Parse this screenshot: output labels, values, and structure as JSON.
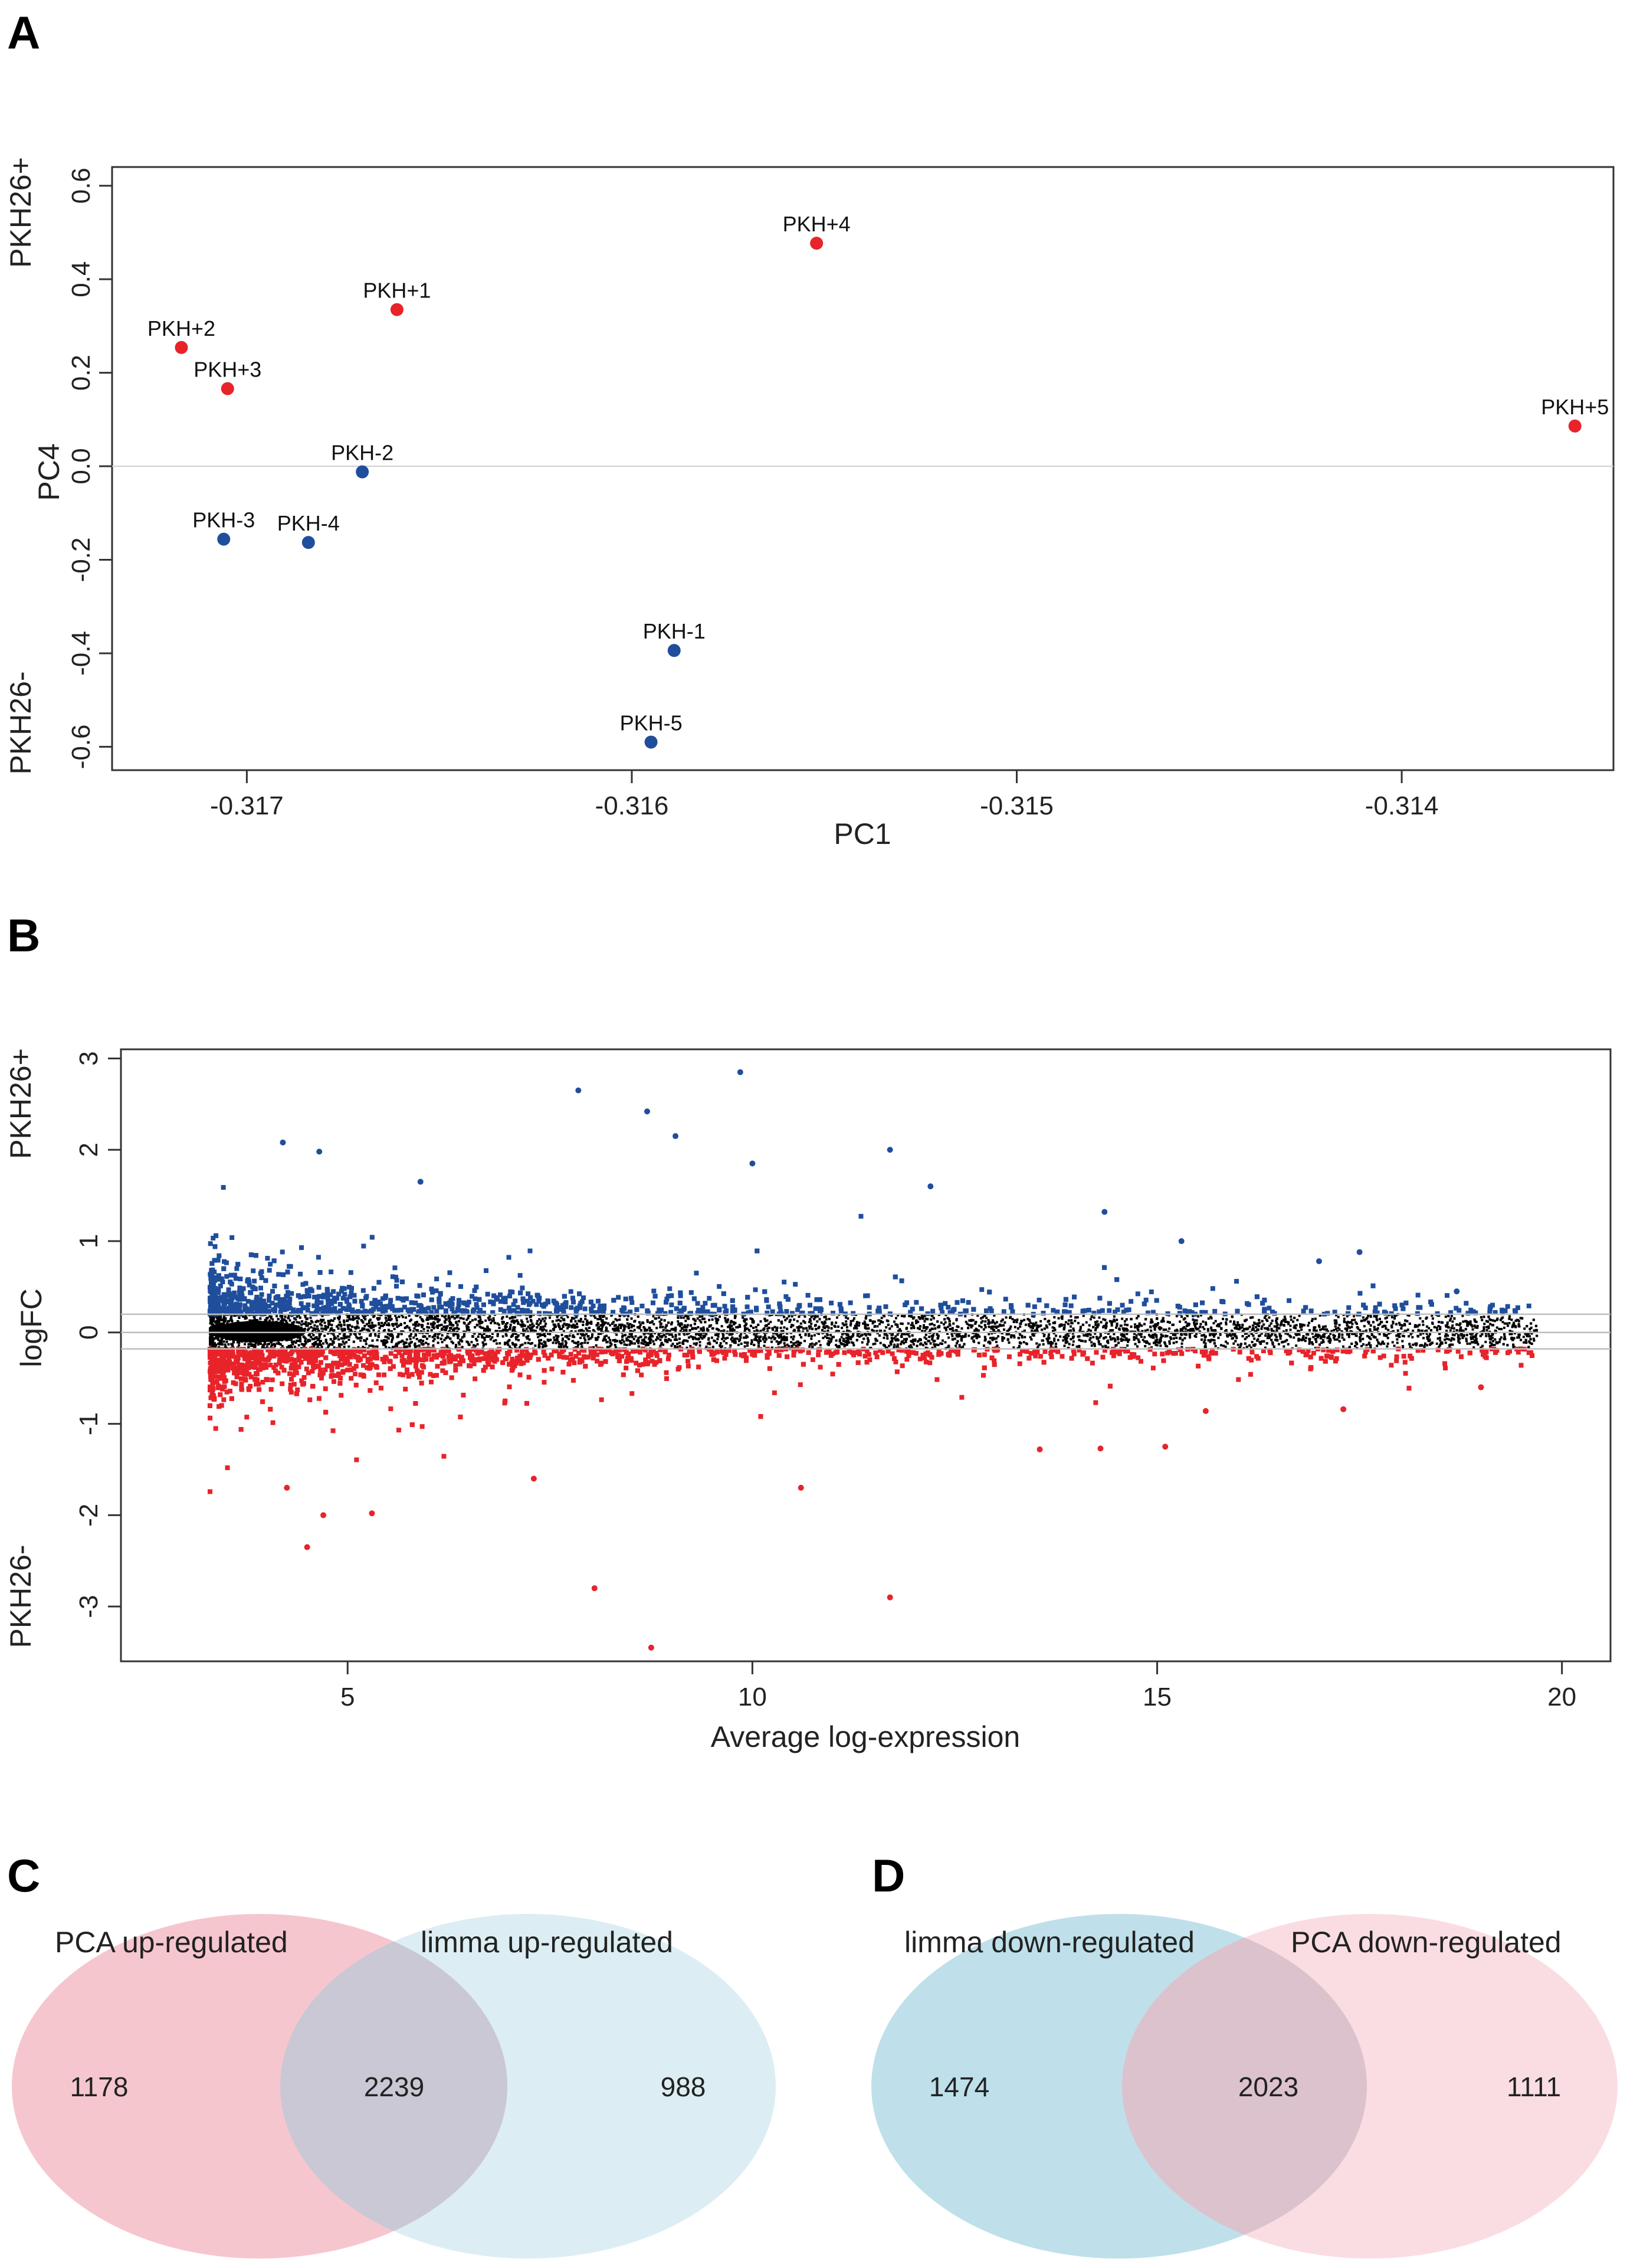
{
  "panels": {
    "A": "A",
    "B": "B",
    "C": "C",
    "D": "D"
  },
  "colors": {
    "red": "#e8232a",
    "blue": "#1f4e9c",
    "black": "#000000",
    "venn_pink": "#f6c6cf",
    "venn_blue": "#bfe0ea",
    "venn_overlap": "#c9c8d4"
  },
  "chart_data": [
    {
      "id": "pca",
      "type": "scatter",
      "xlabel": "PC1",
      "ylabel": "PC4",
      "ylabel_top": "PKH26+",
      "ylabel_bottom": "PKH26-",
      "xlim": [
        -0.31735,
        -0.31345
      ],
      "ylim": [
        -0.65,
        0.64
      ],
      "xticks": [
        -0.317,
        -0.316,
        -0.315,
        -0.314
      ],
      "xtick_labels": [
        "-0.317",
        "-0.316",
        "-0.315",
        "-0.314"
      ],
      "yticks": [
        -0.6,
        -0.4,
        -0.2,
        0.0,
        0.2,
        0.4,
        0.6
      ],
      "ytick_labels": [
        "-0.6",
        "-0.4",
        "-0.2",
        "0.0",
        "0.2",
        "0.4",
        "0.6"
      ],
      "hline": 0,
      "points": [
        {
          "label": "PKH+4",
          "x": -0.31552,
          "y": 0.477,
          "group": "positive"
        },
        {
          "label": "PKH+1",
          "x": -0.31661,
          "y": 0.335,
          "group": "positive"
        },
        {
          "label": "PKH+2",
          "x": -0.31717,
          "y": 0.254,
          "group": "positive"
        },
        {
          "label": "PKH+3",
          "x": -0.31705,
          "y": 0.166,
          "group": "positive"
        },
        {
          "label": "PKH+5",
          "x": -0.31355,
          "y": 0.086,
          "group": "positive"
        },
        {
          "label": "PKH-2",
          "x": -0.3167,
          "y": -0.012,
          "group": "negative"
        },
        {
          "label": "PKH-3",
          "x": -0.31706,
          "y": -0.156,
          "group": "negative"
        },
        {
          "label": "PKH-4",
          "x": -0.31684,
          "y": -0.163,
          "group": "negative"
        },
        {
          "label": "PKH-1",
          "x": -0.31589,
          "y": -0.394,
          "group": "negative"
        },
        {
          "label": "PKH-5",
          "x": -0.31595,
          "y": -0.59,
          "group": "negative"
        }
      ]
    },
    {
      "id": "ma",
      "type": "scatter",
      "xlabel": "Average log-expression",
      "ylabel": "logFC",
      "ylabel_top": "PKH26+",
      "ylabel_bottom": "PKH26-",
      "xlim": [
        2.2,
        20.6
      ],
      "ylim": [
        -3.6,
        3.1
      ],
      "xticks": [
        5,
        10,
        15,
        20
      ],
      "xtick_labels": [
        "5",
        "10",
        "15",
        "20"
      ],
      "yticks": [
        -3,
        -2,
        -1,
        0,
        1,
        2,
        3
      ],
      "ytick_labels": [
        "-3",
        "-2",
        "-1",
        "0",
        "1",
        "2",
        "3"
      ],
      "hlines": [
        -0.18,
        0,
        0.2
      ],
      "sampled_outliers": [
        {
          "x": 9.85,
          "y": 2.85
        },
        {
          "x": 7.85,
          "y": 2.65
        },
        {
          "x": 8.7,
          "y": 2.42
        },
        {
          "x": 9.05,
          "y": 2.15
        },
        {
          "x": 4.2,
          "y": 2.08
        },
        {
          "x": 11.7,
          "y": 2.0
        },
        {
          "x": 4.65,
          "y": 1.98
        },
        {
          "x": 10.0,
          "y": 1.85
        },
        {
          "x": 5.9,
          "y": 1.65
        },
        {
          "x": 12.2,
          "y": 1.6
        },
        {
          "x": 14.35,
          "y": 1.32
        },
        {
          "x": 15.3,
          "y": 1.0
        },
        {
          "x": 17.0,
          "y": 0.78
        },
        {
          "x": 17.5,
          "y": 0.88
        },
        {
          "x": 18.7,
          "y": 0.45
        },
        {
          "x": 4.5,
          "y": -2.35
        },
        {
          "x": 4.7,
          "y": -2.0
        },
        {
          "x": 5.3,
          "y": -1.98
        },
        {
          "x": 8.05,
          "y": -2.8
        },
        {
          "x": 8.75,
          "y": -3.45
        },
        {
          "x": 11.7,
          "y": -2.9
        },
        {
          "x": 10.6,
          "y": -1.7
        },
        {
          "x": 4.25,
          "y": -1.7
        },
        {
          "x": 7.3,
          "y": -1.6
        },
        {
          "x": 14.3,
          "y": -1.27
        },
        {
          "x": 15.1,
          "y": -1.25
        },
        {
          "x": 13.55,
          "y": -1.28
        },
        {
          "x": 15.6,
          "y": -0.86
        },
        {
          "x": 17.3,
          "y": -0.84
        },
        {
          "x": 19.0,
          "y": -0.6
        }
      ]
    }
  ],
  "venn_c": {
    "left_title": "PCA up-regulated",
    "right_title": "limma up-regulated",
    "left_only": "1178",
    "overlap": "2239",
    "right_only": "988"
  },
  "venn_d": {
    "left_title": "limma down-regulated",
    "right_title": "PCA down-regulated",
    "left_only": "1474",
    "overlap": "2023",
    "right_only": "1111"
  }
}
